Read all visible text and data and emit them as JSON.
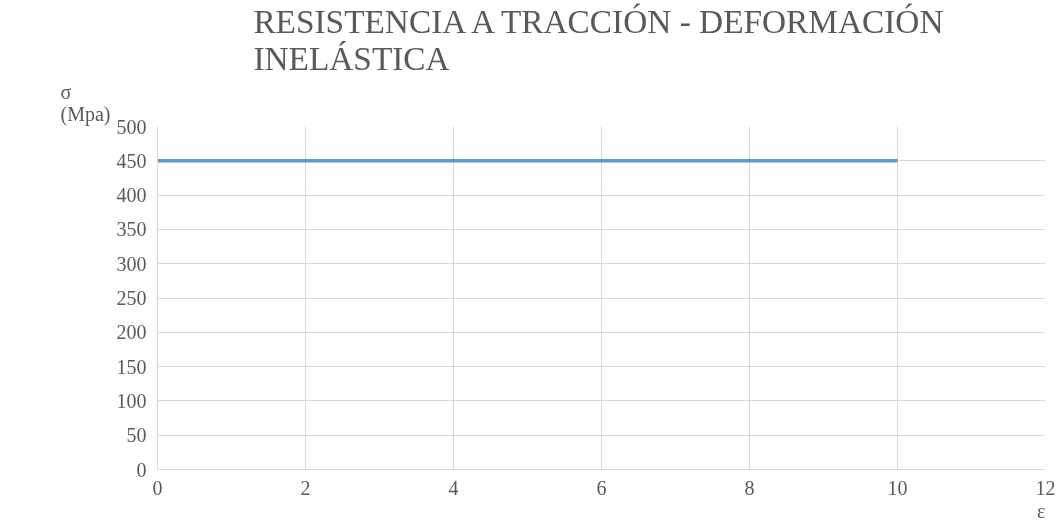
{
  "chart_data": {
    "type": "line",
    "title": "RESISTENCIA A TRACCIÓN - DEFORMACIÓN INELÁSTICA",
    "xlabel": "ε",
    "ylabel": "σ (Mpa)",
    "x": [
      0,
      10
    ],
    "series": [
      {
        "color": "#5b9bd5",
        "values": [
          450,
          450
        ]
      }
    ],
    "xlim": [
      0,
      12
    ],
    "xticks": [
      0,
      2,
      4,
      6,
      8,
      10,
      12
    ],
    "ylim": [
      0,
      500
    ],
    "yticks": [
      0,
      50,
      100,
      150,
      200,
      250,
      300,
      350,
      400,
      450,
      500
    ],
    "grid": true,
    "legend": false,
    "marker": "none",
    "line_style": "solid"
  }
}
